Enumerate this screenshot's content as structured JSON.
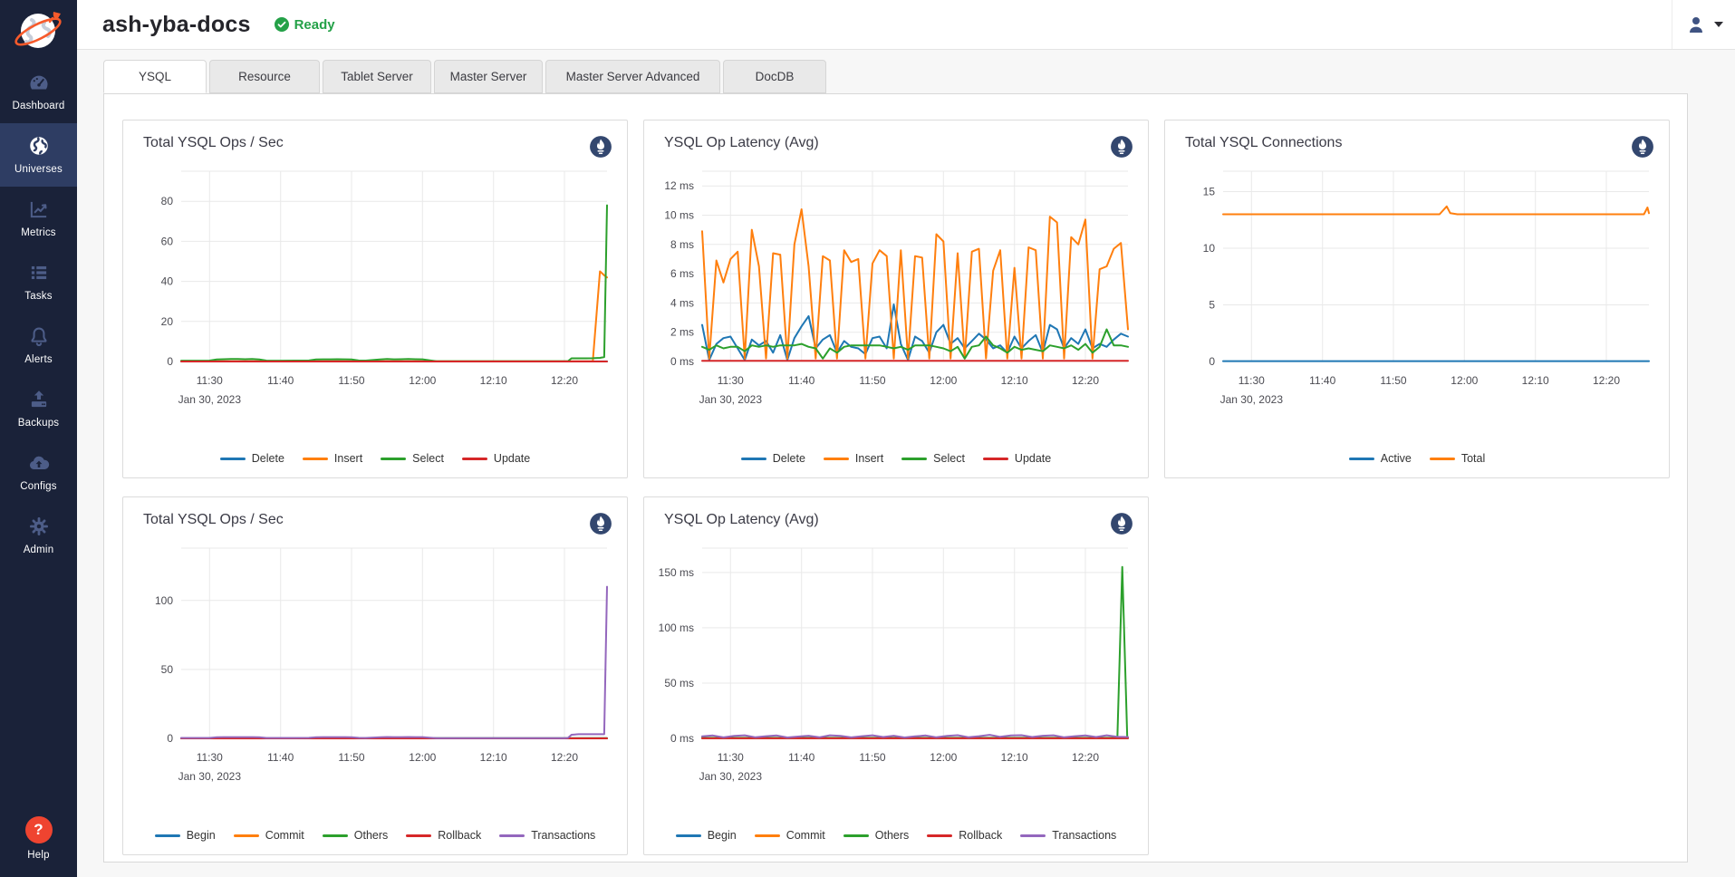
{
  "header": {
    "universe_name": "ash-yba-docs",
    "status": "Ready"
  },
  "user_menu": {
    "icon": "user-icon"
  },
  "sidebar": {
    "items": [
      {
        "label": "Dashboard",
        "icon": "dashboard-gauge-icon",
        "active": false
      },
      {
        "label": "Universes",
        "icon": "universe-globe-icon",
        "active": true
      },
      {
        "label": "Metrics",
        "icon": "metrics-chart-icon",
        "active": false
      },
      {
        "label": "Tasks",
        "icon": "tasks-list-icon",
        "active": false
      },
      {
        "label": "Alerts",
        "icon": "alerts-bell-icon",
        "active": false
      },
      {
        "label": "Backups",
        "icon": "backups-upload-icon",
        "active": false
      },
      {
        "label": "Configs",
        "icon": "configs-cloud-icon",
        "active": false
      },
      {
        "label": "Admin",
        "icon": "admin-gear-icon",
        "active": false
      }
    ],
    "help": {
      "label": "Help",
      "icon": "help-question-icon"
    }
  },
  "tabs": [
    {
      "label": "YSQL",
      "active": true
    },
    {
      "label": "Resource",
      "active": false
    },
    {
      "label": "Tablet Server",
      "active": false
    },
    {
      "label": "Master Server",
      "active": false
    },
    {
      "label": "Master Server Advanced",
      "active": false
    },
    {
      "label": "DocDB",
      "active": false
    }
  ],
  "colors": {
    "sidebar_bg": "#1a2239",
    "sidebar_active": "#2e3d63",
    "status_green": "#24a148",
    "help_orange": "#ef4430",
    "prometheus_navy": "#33476f",
    "series_blue": "#1f77b4",
    "series_orange": "#ff7f0e",
    "series_green": "#2ca02c",
    "series_red": "#d62728",
    "series_purple": "#9467bd"
  },
  "chart_data": [
    {
      "type": "line",
      "title": "Total YSQL Ops / Sec",
      "date_label": "Jan 30, 2023",
      "x_range_minutes": [
        0,
        60
      ],
      "x_tick_minutes": [
        4,
        14,
        24,
        34,
        44,
        54
      ],
      "x_ticks": [
        "11:30",
        "11:40",
        "11:50",
        "12:00",
        "12:10",
        "12:20"
      ],
      "y_max": 95,
      "y_ticks": [
        {
          "v": 0,
          "label": "0"
        },
        {
          "v": 20,
          "label": "20"
        },
        {
          "v": 40,
          "label": "40"
        },
        {
          "v": 60,
          "label": "60"
        },
        {
          "v": 80,
          "label": "80"
        }
      ],
      "series": [
        {
          "name": "Delete",
          "color": "#1f77b4",
          "flat": 0.05
        },
        {
          "name": "Insert",
          "color": "#ff7f0e",
          "x": [
            0,
            2,
            4,
            5,
            6,
            7,
            8,
            9,
            10,
            11,
            12,
            13,
            14,
            16,
            18,
            19,
            20,
            21,
            22,
            23,
            24,
            25,
            26,
            28,
            29,
            30,
            31,
            32,
            33,
            34,
            35,
            36,
            38,
            40,
            42,
            44,
            46,
            48,
            50,
            52,
            54,
            54.5,
            55,
            56,
            57,
            58,
            59,
            59.6,
            60
          ],
          "y": [
            0.1,
            0.1,
            0.1,
            0.1,
            0.1,
            0.1,
            0.1,
            0.1,
            0.1,
            0.1,
            0.1,
            0.1,
            0.1,
            0.1,
            0.1,
            0.1,
            0.1,
            0.1,
            0.1,
            0.1,
            0.1,
            0.1,
            0.1,
            0.1,
            0.1,
            0.1,
            0.1,
            0.1,
            0.1,
            0.1,
            0.1,
            0.1,
            0.1,
            0.1,
            0.1,
            0.1,
            0.1,
            0.1,
            0.1,
            0.1,
            0.1,
            0.1,
            0.1,
            0.1,
            0.1,
            0.1,
            45,
            43,
            42
          ]
        },
        {
          "name": "Select",
          "color": "#2ca02c",
          "x": [
            0,
            2,
            4,
            5,
            6,
            7,
            8,
            9,
            10,
            11,
            12,
            13,
            14,
            16,
            18,
            19,
            20,
            21,
            22,
            23,
            24,
            25,
            26,
            28,
            29,
            30,
            31,
            32,
            33,
            34,
            35,
            36,
            38,
            40,
            42,
            44,
            46,
            48,
            50,
            52,
            54,
            54.5,
            55,
            56,
            57,
            58,
            59,
            59.6,
            60
          ],
          "y": [
            0.4,
            0.4,
            0.45,
            1.0,
            1.15,
            1.2,
            1.2,
            1.15,
            1.2,
            1.0,
            0.45,
            0.4,
            0.4,
            0.45,
            0.5,
            1.05,
            1.1,
            1.1,
            1.15,
            1.1,
            1.0,
            0.5,
            0.45,
            1.05,
            1.2,
            1.1,
            1.15,
            1.2,
            1.15,
            1.1,
            0.6,
            0.15,
            0.15,
            0.15,
            0.15,
            0.15,
            0.15,
            0.15,
            0.15,
            0.15,
            0.15,
            0.2,
            1.6,
            1.6,
            1.6,
            1.65,
            1.8,
            2.2,
            78
          ]
        },
        {
          "name": "Update",
          "color": "#d62728",
          "flat": 0.02
        }
      ]
    },
    {
      "type": "line",
      "title": "YSQL Op Latency (Avg)",
      "date_label": "Jan 30, 2023",
      "x_range_minutes": [
        0,
        60
      ],
      "x_tick_minutes": [
        4,
        14,
        24,
        34,
        44,
        54
      ],
      "x_ticks": [
        "11:30",
        "11:40",
        "11:50",
        "12:00",
        "12:10",
        "12:20"
      ],
      "y_max": 13,
      "y_ticks": [
        {
          "v": 0,
          "label": "0 ms"
        },
        {
          "v": 2,
          "label": "2 ms"
        },
        {
          "v": 4,
          "label": "4 ms"
        },
        {
          "v": 6,
          "label": "6 ms"
        },
        {
          "v": 8,
          "label": "8 ms"
        },
        {
          "v": 10,
          "label": "10 ms"
        },
        {
          "v": 12,
          "label": "12 ms"
        }
      ],
      "series": [
        {
          "name": "Delete",
          "color": "#1f77b4",
          "y": [
            2.5,
            0.1,
            1.2,
            1.6,
            1.7,
            0.9,
            0.1,
            1.5,
            1.1,
            1.4,
            0.6,
            1.8,
            0.1,
            1.6,
            2.4,
            3.1,
            0.9,
            1.5,
            1.8,
            0.6,
            1.4,
            1.0,
            0.9,
            0.5,
            1.6,
            1.7,
            0.9,
            3.9,
            1.2,
            0.1,
            1.7,
            1.4,
            0.6,
            2.0,
            2.5,
            1.2,
            1.6,
            0.9,
            1.4,
            1.9,
            1.5,
            0.9,
            1.1,
            0.6,
            1.7,
            0.9,
            1.4,
            1.8,
            0.6,
            2.5,
            2.2,
            0.9,
            1.6,
            1.2,
            2.2,
            0.9,
            1.2,
            1.0,
            1.5,
            1.9,
            1.7
          ]
        },
        {
          "name": "Insert",
          "color": "#ff7f0e",
          "y": [
            8.9,
            0.2,
            6.9,
            5.4,
            7.0,
            7.5,
            0.2,
            9.0,
            6.5,
            0.2,
            7.4,
            7.3,
            0.2,
            8.0,
            10.4,
            6.5,
            0.2,
            7.2,
            6.9,
            0.2,
            7.6,
            6.8,
            7.0,
            0.2,
            6.7,
            7.6,
            7.2,
            0.2,
            7.6,
            0.2,
            7.2,
            7.1,
            0.2,
            8.7,
            8.2,
            0.2,
            7.4,
            0.2,
            7.5,
            7.7,
            0.2,
            6.2,
            7.6,
            0.2,
            6.4,
            0.2,
            7.8,
            7.6,
            0.2,
            9.9,
            9.5,
            0.2,
            8.5,
            8.0,
            9.7,
            0.2,
            6.3,
            6.5,
            7.7,
            8.1,
            2.2
          ]
        },
        {
          "name": "Select",
          "color": "#2ca02c",
          "y": [
            1.0,
            0.8,
            1.1,
            0.9,
            1.0,
            1.0,
            0.7,
            1.1,
            1.0,
            1.1,
            1.0,
            1.1,
            1.1,
            1.1,
            1.2,
            1.0,
            0.9,
            0.2,
            0.9,
            0.6,
            1.0,
            1.1,
            1.1,
            1.1,
            1.1,
            1.1,
            1.0,
            0.9,
            1.0,
            0.8,
            1.1,
            1.1,
            1.1,
            1.0,
            0.9,
            0.7,
            1.0,
            0.2,
            1.0,
            1.1,
            1.7,
            1.1,
            0.9,
            0.6,
            1.0,
            0.8,
            0.9,
            0.8,
            0.7,
            1.1,
            1.0,
            0.9,
            1.1,
            0.8,
            1.2,
            0.6,
            1.0,
            2.2,
            1.1,
            1.1,
            1.0
          ]
        },
        {
          "name": "Update",
          "color": "#d62728",
          "flat": 0.05
        }
      ]
    },
    {
      "type": "line",
      "title": "Total YSQL Connections",
      "date_label": "Jan 30, 2023",
      "x_range_minutes": [
        0,
        60
      ],
      "x_tick_minutes": [
        4,
        14,
        24,
        34,
        44,
        54
      ],
      "x_ticks": [
        "11:30",
        "11:40",
        "11:50",
        "12:00",
        "12:10",
        "12:20"
      ],
      "y_max": 16.8,
      "y_ticks": [
        {
          "v": 0,
          "label": "0"
        },
        {
          "v": 5,
          "label": "5"
        },
        {
          "v": 10,
          "label": "10"
        },
        {
          "v": 15,
          "label": "15"
        }
      ],
      "series": [
        {
          "name": "Active",
          "color": "#1f77b4",
          "flat": 0.03
        },
        {
          "name": "Total",
          "color": "#ff7f0e",
          "x": [
            0,
            30.5,
            31.5,
            32,
            33,
            58,
            59.3,
            59.8,
            60
          ],
          "y": [
            13,
            13,
            13.7,
            13.1,
            13,
            13,
            13,
            13.6,
            13.1
          ]
        }
      ]
    },
    {
      "type": "line",
      "title": "Total YSQL Ops / Sec",
      "date_label": "Jan 30, 2023",
      "x_range_minutes": [
        0,
        60
      ],
      "x_tick_minutes": [
        4,
        14,
        24,
        34,
        44,
        54
      ],
      "x_ticks": [
        "11:30",
        "11:40",
        "11:50",
        "12:00",
        "12:10",
        "12:20"
      ],
      "y_max": 138,
      "y_ticks": [
        {
          "v": 0,
          "label": "0"
        },
        {
          "v": 50,
          "label": "50"
        },
        {
          "v": 100,
          "label": "100"
        }
      ],
      "series": [
        {
          "name": "Begin",
          "color": "#1f77b4",
          "flat": 0.1
        },
        {
          "name": "Commit",
          "color": "#ff7f0e",
          "flat": 0.08
        },
        {
          "name": "Others",
          "color": "#2ca02c",
          "flat": 0.06
        },
        {
          "name": "Rollback",
          "color": "#d62728",
          "flat": 0.03
        },
        {
          "name": "Transactions",
          "color": "#9467bd",
          "x": [
            0,
            2,
            4,
            5,
            6,
            7,
            8,
            9,
            10,
            11,
            12,
            13,
            14,
            16,
            18,
            19,
            20,
            21,
            22,
            23,
            24,
            25,
            26,
            28,
            29,
            30,
            31,
            32,
            33,
            34,
            35,
            36,
            38,
            40,
            42,
            44,
            46,
            48,
            50,
            52,
            54,
            54.5,
            55,
            56,
            57,
            58,
            59,
            59.6,
            60
          ],
          "y": [
            0.3,
            0.3,
            0.35,
            0.8,
            0.9,
            0.95,
            0.95,
            0.9,
            0.95,
            0.8,
            0.35,
            0.3,
            0.3,
            0.35,
            0.4,
            0.85,
            0.9,
            0.9,
            0.95,
            0.9,
            0.8,
            0.4,
            0.35,
            0.85,
            1.0,
            0.9,
            0.95,
            1.0,
            0.95,
            0.9,
            0.5,
            0.15,
            0.15,
            0.15,
            0.15,
            0.15,
            0.15,
            0.15,
            0.15,
            0.15,
            0.2,
            0.3,
            2.6,
            3.0,
            3.0,
            3.0,
            3.0,
            3.0,
            110
          ]
        }
      ]
    },
    {
      "type": "line",
      "title": "YSQL Op Latency (Avg)",
      "date_label": "Jan 30, 2023",
      "x_range_minutes": [
        0,
        60
      ],
      "x_tick_minutes": [
        4,
        14,
        24,
        34,
        44,
        54
      ],
      "x_ticks": [
        "11:30",
        "11:40",
        "11:50",
        "12:00",
        "12:10",
        "12:20"
      ],
      "y_max": 172,
      "y_ticks": [
        {
          "v": 0,
          "label": "0 ms"
        },
        {
          "v": 50,
          "label": "50 ms"
        },
        {
          "v": 100,
          "label": "100 ms"
        },
        {
          "v": 150,
          "label": "150 ms"
        }
      ],
      "series": [
        {
          "name": "Begin",
          "color": "#1f77b4",
          "flat": 0.25
        },
        {
          "name": "Commit",
          "color": "#ff7f0e",
          "flat": 0.18
        },
        {
          "name": "Others",
          "color": "#2ca02c",
          "x": [
            0,
            10,
            20,
            30,
            40,
            50,
            56,
            58,
            58.5,
            59.2,
            59.9,
            60
          ],
          "y": [
            0.5,
            0.5,
            0.5,
            0.5,
            0.5,
            0.5,
            0.5,
            0.5,
            0.6,
            155,
            0.7,
            0.6
          ]
        },
        {
          "name": "Rollback",
          "color": "#d62728",
          "flat": 0.05
        },
        {
          "name": "Transactions",
          "color": "#9467bd",
          "y": [
            1.8,
            2.6,
            0.9,
            2.2,
            2.8,
            1.0,
            2.0,
            2.6,
            0.8,
            1.6,
            2.4,
            1.0,
            2.8,
            2.2,
            0.9,
            2.0,
            2.8,
            1.2,
            2.4,
            0.8,
            1.8,
            2.6,
            1.0,
            2.2,
            2.9,
            1.1,
            2.0,
            3.2,
            1.4,
            2.6,
            2.9,
            1.2,
            2.4,
            2.8,
            1.0,
            2.0,
            2.6,
            1.2,
            2.8,
            1.5,
            1.2
          ]
        }
      ]
    }
  ]
}
